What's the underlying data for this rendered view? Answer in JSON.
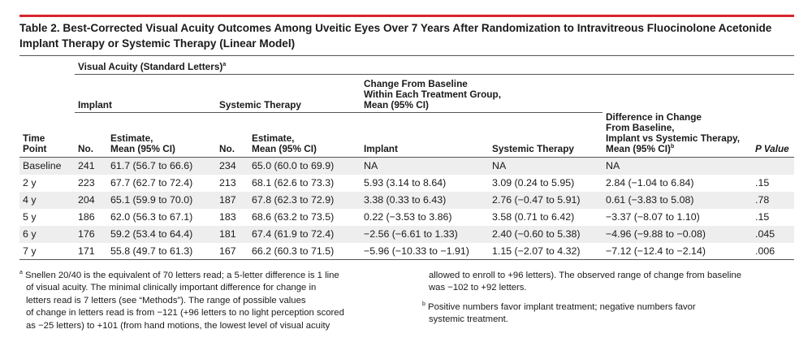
{
  "title": "Table 2. Best-Corrected Visual Acuity Outcomes Among Uveitic Eyes Over 7 Years After Randomization to Intravitreous Fluocinolone Acetonide Implant Therapy or Systemic Therapy (Linear Model)",
  "header": {
    "va_group": "Visual Acuity (Standard Letters)",
    "va_group_mark": "a",
    "implant": "Implant",
    "systemic": "Systemic Therapy",
    "change_group_l1": "Change From Baseline",
    "change_group_l2": "Within Each Treatment Group,",
    "change_group_l3": "Mean (95% CI)",
    "time_point_l1": "Time",
    "time_point_l2": "Point",
    "no": "No.",
    "estimate_l1": "Estimate,",
    "estimate_l2": "Mean (95% CI)",
    "change_implant": "Implant",
    "change_systemic": "Systemic Therapy",
    "diff_l1": "Difference in Change",
    "diff_l2": "From Baseline,",
    "diff_l3": "Implant vs Systemic Therapy,",
    "diff_l4": "Mean (95% CI)",
    "diff_mark": "b",
    "p_value": "P Value"
  },
  "rows": [
    {
      "time": "Baseline",
      "imp_no": "241",
      "imp_est": "61.7 (56.7 to 66.6)",
      "sys_no": "234",
      "sys_est": "65.0 (60.0 to 69.9)",
      "chg_imp": "NA",
      "chg_sys": "NA",
      "diff": "NA",
      "p": ""
    },
    {
      "time": "2 y",
      "imp_no": "223",
      "imp_est": "67.7 (62.7 to 72.4)",
      "sys_no": "213",
      "sys_est": "68.1 (62.6 to 73.3)",
      "chg_imp": "5.93 (3.14 to 8.64)",
      "chg_sys": "3.09 (0.24 to 5.95)",
      "diff": "2.84 (−1.04 to 6.84)",
      "p": ".15"
    },
    {
      "time": "4 y",
      "imp_no": "204",
      "imp_est": "65.1 (59.9 to 70.0)",
      "sys_no": "187",
      "sys_est": "67.8 (62.3 to 72.9)",
      "chg_imp": "3.38 (0.33 to 6.43)",
      "chg_sys": "2.76 (−0.47 to 5.91)",
      "diff": "0.61 (−3.83 to 5.08)",
      "p": ".78"
    },
    {
      "time": "5 y",
      "imp_no": "186",
      "imp_est": "62.0 (56.3 to 67.1)",
      "sys_no": "183",
      "sys_est": "68.6 (63.2 to 73.5)",
      "chg_imp": "0.22 (−3.53 to 3.86)",
      "chg_sys": "3.58 (0.71 to 6.42)",
      "diff": "−3.37 (−8.07 to 1.10)",
      "p": ".15"
    },
    {
      "time": "6 y",
      "imp_no": "176",
      "imp_est": "59.2 (53.4 to 64.4)",
      "sys_no": "181",
      "sys_est": "67.4 (61.9 to 72.4)",
      "chg_imp": "−2.56 (−6.61 to 1.33)",
      "chg_sys": "2.40 (−0.60 to 5.38)",
      "diff": "−4.96 (−9.88 to −0.08)",
      "p": ".045"
    },
    {
      "time": "7 y",
      "imp_no": "171",
      "imp_est": "55.8 (49.7 to 61.3)",
      "sys_no": "167",
      "sys_est": "66.2 (60.3 to 71.5)",
      "chg_imp": "−5.96 (−10.33 to −1.91)",
      "chg_sys": "1.15 (−2.07 to 4.32)",
      "diff": "−7.12 (−12.4 to −2.14)",
      "p": ".006"
    }
  ],
  "footnotes": {
    "a_mark": "a",
    "a_left": [
      "Snellen 20/40 is the equivalent of 70 letters read; a 5-letter difference is 1 line",
      "of visual acuity. The minimal clinically important difference for change in",
      "letters read is 7 letters (see “Methods”). The range of possible values",
      "of change in letters read is from −121 (+96 letters to no light perception scored",
      "as −25 letters) to +101 (from hand motions, the lowest level of visual acuity"
    ],
    "a_right": [
      "allowed to enroll to +96 letters). The observed range of change from baseline",
      "was −102 to +92 letters."
    ],
    "b_mark": "b",
    "b_lines": [
      "Positive numbers favor implant treatment; negative numbers favor",
      "systemic treatment."
    ]
  }
}
